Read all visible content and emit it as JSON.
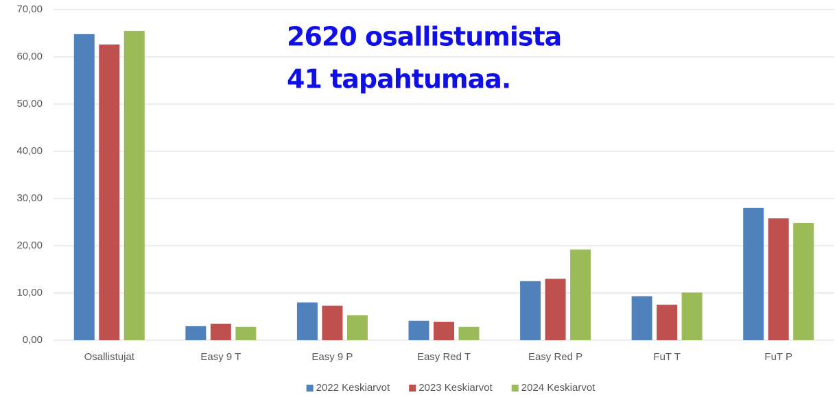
{
  "chart_data": {
    "type": "bar",
    "annotations": [
      "2620 osallistumista",
      "41 tapahtumaa."
    ],
    "categories": [
      "Osallistujat",
      "Easy 9 T",
      "Easy 9 P",
      "Easy Red T",
      "Easy Red P",
      "FuT T",
      "FuT P"
    ],
    "series": [
      {
        "name": "2022 Keskiarvot",
        "color": "#4f81bd",
        "values": [
          64.8,
          3.0,
          8.0,
          4.1,
          12.5,
          9.3,
          28.0
        ]
      },
      {
        "name": "2023 Keskiarvot",
        "color": "#c0504d",
        "values": [
          62.6,
          3.5,
          7.3,
          3.9,
          13.0,
          7.5,
          25.8
        ]
      },
      {
        "name": "2024 Keskiarvot",
        "color": "#9bbb59",
        "values": [
          65.5,
          2.8,
          5.3,
          2.8,
          19.2,
          10.1,
          24.8
        ]
      }
    ],
    "ylim": [
      0,
      70
    ],
    "yticks": [
      {
        "value": 0,
        "label": "0,00"
      },
      {
        "value": 10,
        "label": "10,00"
      },
      {
        "value": 20,
        "label": "20,00"
      },
      {
        "value": 30,
        "label": "30,00"
      },
      {
        "value": 40,
        "label": "40,00"
      },
      {
        "value": 50,
        "label": "50,00"
      },
      {
        "value": 60,
        "label": "60,00"
      },
      {
        "value": 70,
        "label": "70,00"
      }
    ],
    "grid": true,
    "legend": "bottom"
  }
}
